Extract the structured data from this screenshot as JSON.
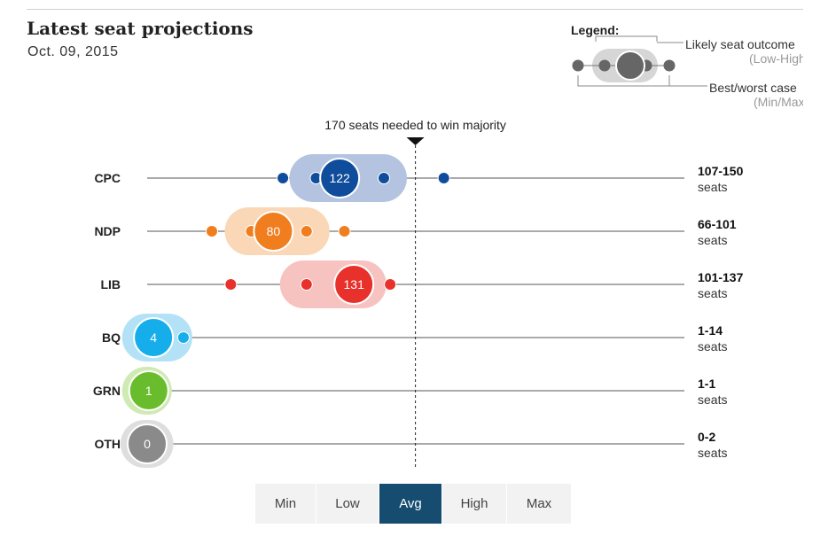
{
  "header": {
    "title": "Latest seat projections",
    "date": "Oct. 09, 2015"
  },
  "legend": {
    "title": "Legend:",
    "likely_label": "Likely seat outcome",
    "likely_sub": "(Low-High)",
    "best_label": "Best/worst case",
    "best_sub": "(Min/Max)"
  },
  "chart_data": {
    "type": "range-dot",
    "title": "Latest seat projections",
    "subtitle": "Oct. 09, 2015",
    "majority": {
      "value": 170,
      "label": "170 seats needed to win majority"
    },
    "x_range": [
      0,
      338
    ],
    "series": [
      {
        "party": "CPC",
        "min": 86,
        "low": 107,
        "avg": 122,
        "high": 150,
        "max": 188,
        "range_label": "107-150",
        "unit_label": "seats",
        "color": "#0f4c9c",
        "band": "#b4c4e0"
      },
      {
        "party": "NDP",
        "min": 41,
        "low": 66,
        "avg": 80,
        "high": 101,
        "max": 125,
        "range_label": "66-101",
        "unit_label": "seats",
        "color": "#f07d1e",
        "band": "#fad7b6"
      },
      {
        "party": "LIB",
        "min": 53,
        "low": 101,
        "avg": 131,
        "high": 137,
        "max": 154,
        "range_label": "101-137",
        "unit_label": "seats",
        "color": "#e8312a",
        "band": "#f7c3c0"
      },
      {
        "party": "BQ",
        "min": 1,
        "low": 1,
        "avg": 4,
        "high": 14,
        "max": 23,
        "range_label": "1-14",
        "unit_label": "seats",
        "color": "#16aeea",
        "band": "#b3e2f7"
      },
      {
        "party": "GRN",
        "min": 1,
        "low": 1,
        "avg": 1,
        "high": 1,
        "max": 1,
        "range_label": "1-1",
        "unit_label": "seats",
        "color": "#69bd2c",
        "band": "#cfeab3"
      },
      {
        "party": "OTH",
        "min": 0,
        "low": 0,
        "avg": 0,
        "high": 2,
        "max": 2,
        "range_label": "0-2",
        "unit_label": "seats",
        "color": "#8a8a8a",
        "band": "#dedede"
      }
    ]
  },
  "controls": {
    "buttons": [
      {
        "label": "Min",
        "active": false
      },
      {
        "label": "Low",
        "active": false
      },
      {
        "label": "Avg",
        "active": true
      },
      {
        "label": "High",
        "active": false
      },
      {
        "label": "Max",
        "active": false
      }
    ]
  }
}
